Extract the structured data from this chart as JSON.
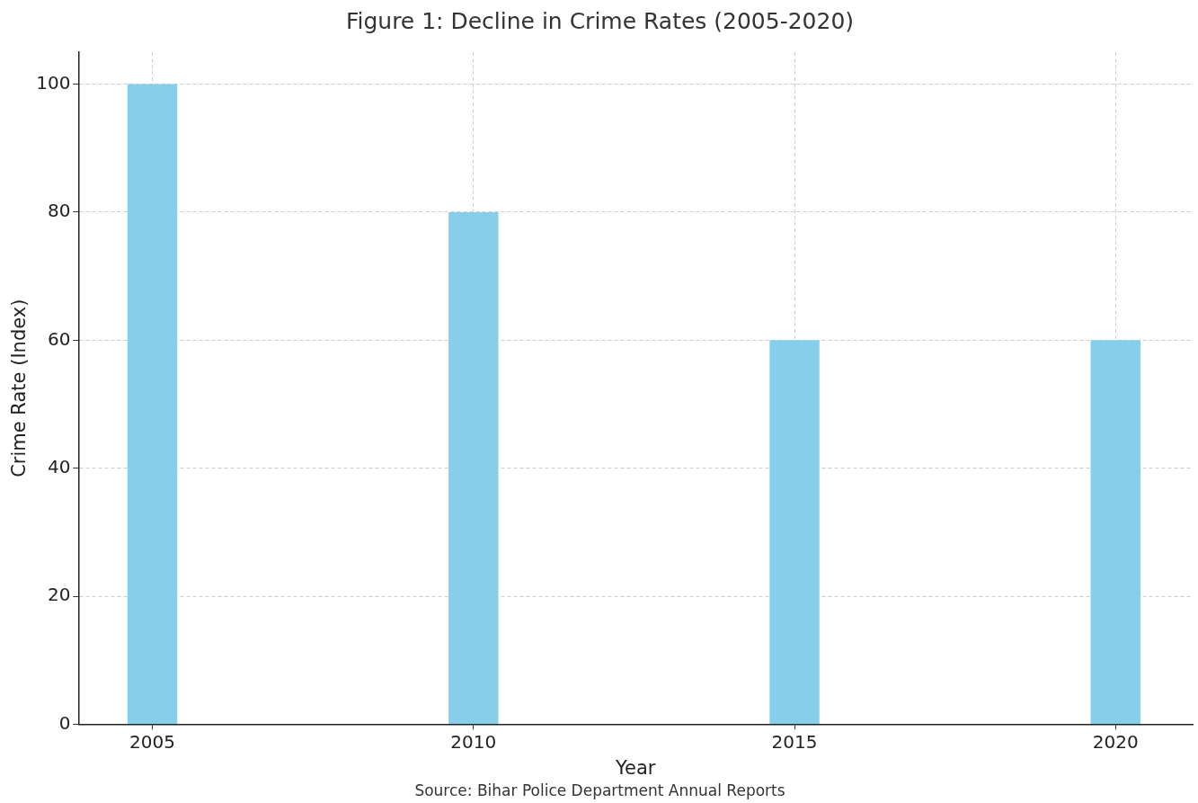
{
  "chart_data": {
    "type": "bar",
    "title": "Figure 1: Decline in Crime Rates (2005-2020)",
    "xlabel": "Year",
    "ylabel": "Crime Rate (Index)",
    "x": [
      2005,
      2010,
      2015,
      2020
    ],
    "values": [
      100,
      80,
      60,
      60
    ],
    "color": "#87ceeb",
    "xlim": [
      2003.85,
      2021.2
    ],
    "xticks": [
      2005,
      2010,
      2015,
      2020
    ],
    "ylim": [
      0,
      105
    ],
    "yticks": [
      0,
      20,
      40,
      60,
      80,
      100
    ],
    "grid": true,
    "annotations": [
      "Source: Bihar Police Department Annual Reports"
    ]
  }
}
